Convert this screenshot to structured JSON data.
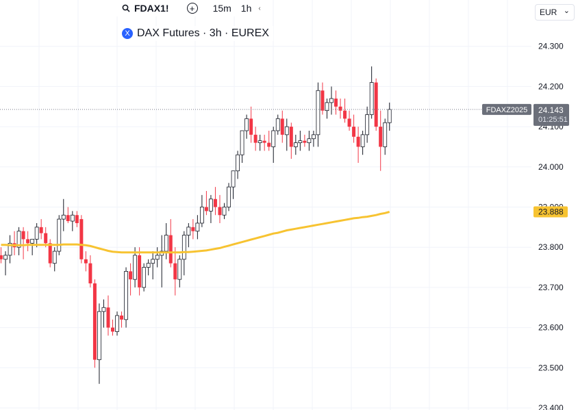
{
  "toolbar": {
    "symbol": "FDAX1!",
    "add_label": "+",
    "timeframes": [
      "15m",
      "1h"
    ],
    "more_label": "‹"
  },
  "legend": {
    "icon_letter": "X",
    "title": "DAX Futures · 3h · EUREX"
  },
  "currency": {
    "label": "EUR",
    "chevron": "⌄"
  },
  "colors": {
    "up": "#ffffff",
    "up_border": "#131722",
    "down": "#f23645",
    "ma": "#f7c331",
    "price_line": "#787b86"
  },
  "chart_data": {
    "type": "candlestick",
    "y_ticks": [
      "23.400",
      "23.500",
      "23.600",
      "23.700",
      "23.800",
      "23.900",
      "24.000",
      "24.100",
      "24.200",
      "24.300"
    ],
    "y_tick_values": [
      23400,
      23500,
      23600,
      23700,
      23800,
      23900,
      24000,
      24100,
      24200,
      24300
    ],
    "ylim": [
      23400,
      24400
    ],
    "grid": true,
    "last_price": {
      "symbol_label": "FDAXZ2025",
      "value_label": "24.143",
      "countdown": "01:25:51",
      "value": 24143
    },
    "ma_label": {
      "value_label": "23.888",
      "value": 23888
    },
    "candles": [
      [
        23780,
        23800,
        23760,
        23770
      ],
      [
        23770,
        23790,
        23730,
        23780
      ],
      [
        23780,
        23830,
        23760,
        23810
      ],
      [
        23810,
        23840,
        23780,
        23800
      ],
      [
        23800,
        23850,
        23780,
        23840
      ],
      [
        23840,
        23850,
        23770,
        23820
      ],
      [
        23820,
        23840,
        23790,
        23810
      ],
      [
        23810,
        23820,
        23780,
        23820
      ],
      [
        23820,
        23860,
        23800,
        23850
      ],
      [
        23850,
        23870,
        23820,
        23835
      ],
      [
        23835,
        23850,
        23800,
        23810
      ],
      [
        23810,
        23820,
        23750,
        23760
      ],
      [
        23760,
        23800,
        23740,
        23790
      ],
      [
        23790,
        23880,
        23780,
        23870
      ],
      [
        23870,
        23920,
        23840,
        23880
      ],
      [
        23880,
        23900,
        23860,
        23865
      ],
      [
        23865,
        23890,
        23840,
        23880
      ],
      [
        23880,
        23890,
        23850,
        23860
      ],
      [
        23870,
        23880,
        23760,
        23770
      ],
      [
        23770,
        23790,
        23740,
        23760
      ],
      [
        23760,
        23780,
        23700,
        23710
      ],
      [
        23710,
        23720,
        23500,
        23520
      ],
      [
        23520,
        23660,
        23460,
        23640
      ],
      [
        23640,
        23670,
        23600,
        23650
      ],
      [
        23650,
        23680,
        23580,
        23600
      ],
      [
        23600,
        23620,
        23580,
        23590
      ],
      [
        23590,
        23640,
        23580,
        23630
      ],
      [
        23630,
        23640,
        23600,
        23620
      ],
      [
        23620,
        23750,
        23600,
        23740
      ],
      [
        23740,
        23760,
        23680,
        23720
      ],
      [
        23720,
        23800,
        23700,
        23780
      ],
      [
        23780,
        23800,
        23680,
        23700
      ],
      [
        23700,
        23760,
        23690,
        23750
      ],
      [
        23750,
        23770,
        23730,
        23760
      ],
      [
        23760,
        23790,
        23720,
        23770
      ],
      [
        23770,
        23800,
        23750,
        23780
      ],
      [
        23780,
        23830,
        23700,
        23790
      ],
      [
        23790,
        23860,
        23770,
        23830
      ],
      [
        23830,
        23870,
        23750,
        23760
      ],
      [
        23760,
        23800,
        23680,
        23720
      ],
      [
        23720,
        23780,
        23700,
        23770
      ],
      [
        23770,
        23840,
        23730,
        23830
      ],
      [
        23830,
        23860,
        23800,
        23850
      ],
      [
        23850,
        23870,
        23820,
        23840
      ],
      [
        23840,
        23880,
        23820,
        23860
      ],
      [
        23860,
        23930,
        23850,
        23900
      ],
      [
        23900,
        23940,
        23880,
        23890
      ],
      [
        23890,
        23930,
        23860,
        23920
      ],
      [
        23920,
        23950,
        23880,
        23900
      ],
      [
        23900,
        23930,
        23860,
        23880
      ],
      [
        23880,
        23910,
        23870,
        23900
      ],
      [
        23900,
        23960,
        23890,
        23950
      ],
      [
        23950,
        23990,
        23920,
        23990
      ],
      [
        23990,
        24040,
        23970,
        24030
      ],
      [
        24030,
        24080,
        24010,
        24090
      ],
      [
        24090,
        24130,
        24070,
        24120
      ],
      [
        24120,
        24150,
        24060,
        24080
      ],
      [
        24080,
        24100,
        24040,
        24060
      ],
      [
        24060,
        24080,
        24040,
        24065
      ],
      [
        24065,
        24080,
        24040,
        24060
      ],
      [
        24060,
        24090,
        24040,
        24050
      ],
      [
        24050,
        24100,
        24010,
        24090
      ],
      [
        24090,
        24130,
        24080,
        24120
      ],
      [
        24120,
        24140,
        24060,
        24080
      ],
      [
        24080,
        24120,
        24040,
        24100
      ],
      [
        24100,
        24110,
        24020,
        24050
      ],
      [
        24050,
        24080,
        24030,
        24060
      ],
      [
        24060,
        24090,
        24040,
        24065
      ],
      [
        24065,
        24080,
        24050,
        24060
      ],
      [
        24060,
        24090,
        24040,
        24070
      ],
      [
        24070,
        24090,
        24050,
        24080
      ],
      [
        24080,
        24210,
        24050,
        24190
      ],
      [
        24190,
        24210,
        24130,
        24140
      ],
      [
        24140,
        24170,
        24120,
        24160
      ],
      [
        24160,
        24200,
        24130,
        24170
      ],
      [
        24170,
        24190,
        24130,
        24150
      ],
      [
        24150,
        24170,
        24120,
        24140
      ],
      [
        24140,
        24170,
        24110,
        24120
      ],
      [
        24120,
        24140,
        24090,
        24100
      ],
      [
        24100,
        24130,
        24060,
        24075
      ],
      [
        24075,
        24100,
        24010,
        24050
      ],
      [
        24050,
        24090,
        24030,
        24080
      ],
      [
        24080,
        24150,
        24060,
        24130
      ],
      [
        24130,
        24250,
        24120,
        24210
      ],
      [
        24210,
        24220,
        24090,
        24100
      ],
      [
        24100,
        24140,
        23990,
        24050
      ],
      [
        24050,
        24120,
        24030,
        24110
      ],
      [
        24110,
        24160,
        24090,
        24143
      ]
    ],
    "ma": [
      23806,
      23806,
      23805,
      23805,
      23805,
      23805,
      23806,
      23806,
      23806,
      23806,
      23806,
      23806,
      23806,
      23806,
      23807,
      23807,
      23807,
      23807,
      23806,
      23805,
      23803,
      23800,
      23797,
      23794,
      23791,
      23789,
      23788,
      23787,
      23787,
      23787,
      23787,
      23787,
      23787,
      23787,
      23787,
      23787,
      23787,
      23787,
      23787,
      23787,
      23787,
      23788,
      23788,
      23789,
      23790,
      23791,
      23792,
      23794,
      23796,
      23798,
      23801,
      23804,
      23807,
      23810,
      23813,
      23816,
      23819,
      23822,
      23825,
      23828,
      23831,
      23834,
      23836,
      23839,
      23842,
      23844,
      23846,
      23848,
      23850,
      23852,
      23854,
      23856,
      23858,
      23860,
      23862,
      23864,
      23866,
      23868,
      23870,
      23872,
      23873,
      23875,
      23876,
      23878,
      23880,
      23883,
      23885,
      23888
    ]
  }
}
